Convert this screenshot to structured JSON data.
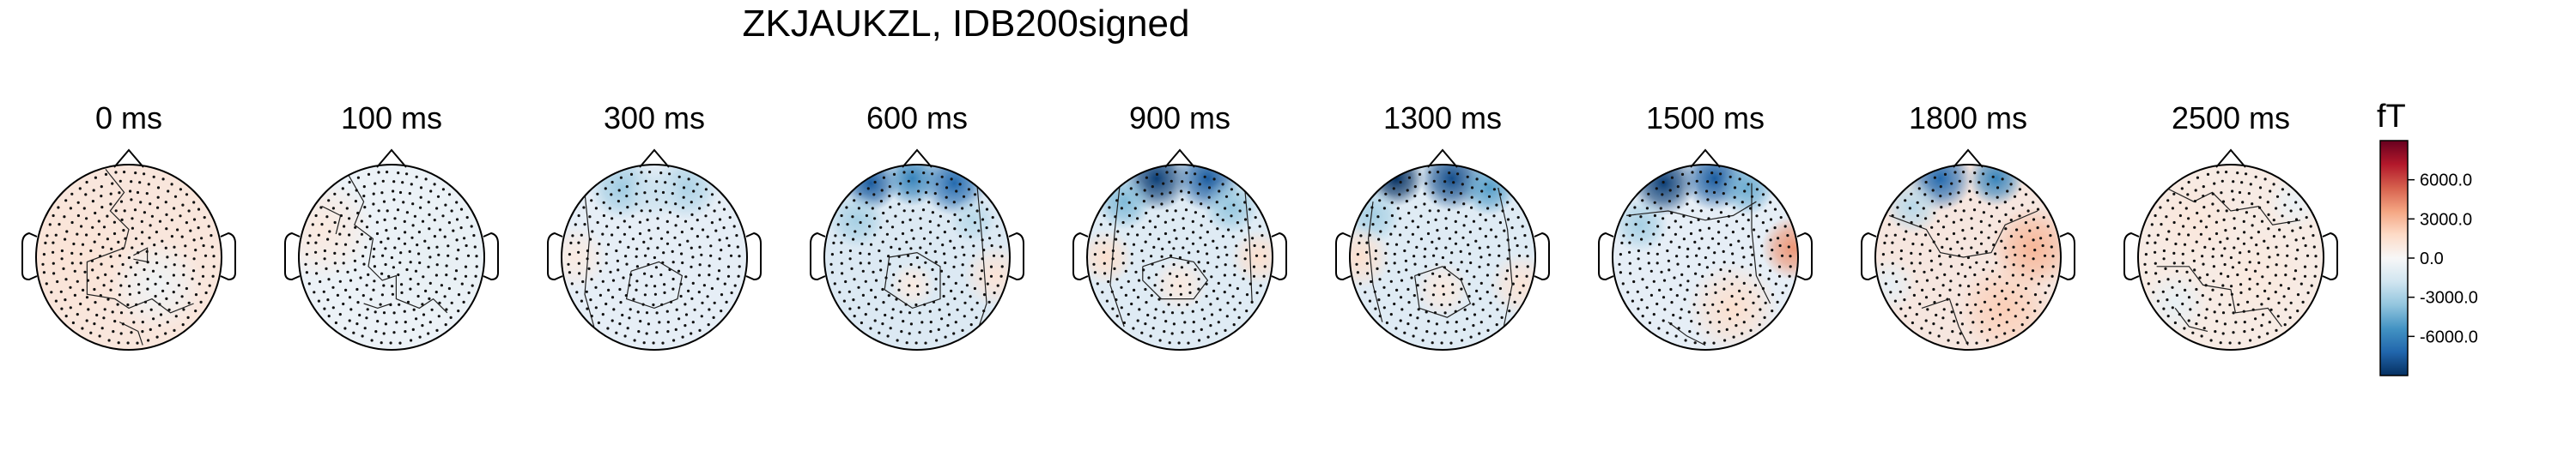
{
  "chart_data": {
    "type": "heatmap",
    "title": "ZKJAUKZL, IDB200signed",
    "colorbar": {
      "unit": "fT",
      "ticks": [
        6000.0,
        3000.0,
        0.0,
        -3000.0,
        -6000.0
      ],
      "tick_labels": [
        "6000.0",
        "3000.0",
        "0.0",
        "-3000.0",
        "-6000.0"
      ],
      "vmin": -9000,
      "vmax": 9000,
      "colormap": "RdBu_r",
      "colors": [
        "#053061",
        "#2166ac",
        "#4393c3",
        "#92c5de",
        "#d1e5f0",
        "#f7f7f7",
        "#fddbc7",
        "#f4a582",
        "#d6604d",
        "#b2182b",
        "#67001f"
      ]
    },
    "topomaps": [
      {
        "time_label": "0 ms",
        "time_ms": 0,
        "fill": "#f9e6dc",
        "blobs": [
          {
            "x": -0.6,
            "y": 0.0,
            "r": 0.7,
            "v": 1200
          },
          {
            "x": 0.3,
            "y": -0.3,
            "r": 0.5,
            "v": -400
          }
        ],
        "contours": [
          [
            [
              -0.25,
              0.95
            ],
            [
              -0.05,
              0.7
            ],
            [
              -0.2,
              0.5
            ],
            [
              0.0,
              0.3
            ],
            [
              -0.05,
              0.1
            ],
            [
              -0.45,
              -0.05
            ],
            [
              -0.45,
              -0.4
            ],
            [
              -0.15,
              -0.45
            ],
            [
              0.0,
              -0.55
            ],
            [
              0.25,
              -0.45
            ],
            [
              0.45,
              -0.6
            ],
            [
              0.7,
              -0.5
            ]
          ],
          [
            [
              0.05,
              0.02
            ],
            [
              0.2,
              0.1
            ],
            [
              0.2,
              -0.05
            ],
            [
              0.05,
              -0.02
            ]
          ],
          [
            [
              -0.1,
              -0.7
            ],
            [
              0.1,
              -0.8
            ],
            [
              0.15,
              -0.95
            ]
          ]
        ]
      },
      {
        "time_label": "100 ms",
        "time_ms": 100,
        "fill": "#ecf2f7",
        "blobs": [
          {
            "x": -0.75,
            "y": 0.3,
            "r": 0.55,
            "v": 900
          },
          {
            "x": 0.5,
            "y": 0.0,
            "r": 0.7,
            "v": -700
          }
        ],
        "contours": [
          [
            [
              -0.5,
              0.95
            ],
            [
              -0.3,
              0.6
            ],
            [
              -0.4,
              0.35
            ],
            [
              -0.2,
              0.2
            ],
            [
              -0.25,
              -0.1
            ],
            [
              -0.1,
              -0.25
            ],
            [
              0.05,
              -0.2
            ],
            [
              0.05,
              -0.45
            ],
            [
              0.3,
              -0.55
            ],
            [
              0.45,
              -0.45
            ],
            [
              0.6,
              -0.6
            ]
          ],
          [
            [
              -0.75,
              0.55
            ],
            [
              -0.55,
              0.45
            ],
            [
              -0.6,
              0.25
            ]
          ],
          [
            [
              -0.3,
              -0.5
            ],
            [
              -0.15,
              -0.55
            ],
            [
              0.0,
              -0.5
            ]
          ]
        ]
      },
      {
        "time_label": "300 ms",
        "time_ms": 300,
        "fill": "#e6eef6",
        "blobs": [
          {
            "x": -0.35,
            "y": 0.75,
            "r": 0.35,
            "v": -3200
          },
          {
            "x": 0.35,
            "y": 0.75,
            "r": 0.35,
            "v": -2800
          },
          {
            "x": 0.0,
            "y": 0.7,
            "r": 0.3,
            "v": -2000
          },
          {
            "x": -0.85,
            "y": 0.0,
            "r": 0.35,
            "v": 800
          }
        ],
        "contours": [
          [
            [
              -0.25,
              -0.15
            ],
            [
              0.05,
              -0.05
            ],
            [
              0.3,
              -0.2
            ],
            [
              0.25,
              -0.45
            ],
            [
              0.0,
              -0.55
            ],
            [
              -0.3,
              -0.45
            ],
            [
              -0.25,
              -0.15
            ]
          ],
          [
            [
              -0.75,
              0.7
            ],
            [
              -0.7,
              0.2
            ],
            [
              -0.75,
              -0.4
            ],
            [
              -0.65,
              -0.75
            ]
          ]
        ]
      },
      {
        "time_label": "600 ms",
        "time_ms": 600,
        "fill": "#dce9f3",
        "blobs": [
          {
            "x": -0.5,
            "y": 0.8,
            "r": 0.3,
            "v": -7500
          },
          {
            "x": 0.4,
            "y": 0.8,
            "r": 0.35,
            "v": -7000
          },
          {
            "x": -0.05,
            "y": 0.85,
            "r": 0.3,
            "v": -6000
          },
          {
            "x": -0.65,
            "y": 0.4,
            "r": 0.3,
            "v": -3000
          },
          {
            "x": 0.6,
            "y": 0.4,
            "r": 0.25,
            "v": -2500
          },
          {
            "x": 0.85,
            "y": -0.2,
            "r": 0.35,
            "v": 1200
          },
          {
            "x": -0.05,
            "y": -0.3,
            "r": 0.25,
            "v": 800
          }
        ],
        "contours": [
          [
            [
              -0.3,
              0.0
            ],
            [
              0.0,
              0.05
            ],
            [
              0.25,
              -0.1
            ],
            [
              0.25,
              -0.45
            ],
            [
              -0.05,
              -0.55
            ],
            [
              -0.35,
              -0.35
            ],
            [
              -0.3,
              0.0
            ]
          ],
          [
            [
              0.65,
              0.75
            ],
            [
              0.7,
              0.2
            ],
            [
              0.75,
              -0.5
            ],
            [
              0.65,
              -0.8
            ]
          ]
        ]
      },
      {
        "time_label": "900 ms",
        "time_ms": 900,
        "fill": "#dfebf4",
        "blobs": [
          {
            "x": -0.25,
            "y": 0.85,
            "r": 0.35,
            "v": -8500
          },
          {
            "x": 0.3,
            "y": 0.85,
            "r": 0.35,
            "v": -7500
          },
          {
            "x": -0.6,
            "y": 0.6,
            "r": 0.3,
            "v": -4000
          },
          {
            "x": 0.55,
            "y": 0.55,
            "r": 0.3,
            "v": -3500
          },
          {
            "x": -0.8,
            "y": 0.0,
            "r": 0.3,
            "v": 1500
          },
          {
            "x": 0.85,
            "y": 0.0,
            "r": 0.3,
            "v": 1500
          },
          {
            "x": 0.0,
            "y": -0.3,
            "r": 0.3,
            "v": 900
          }
        ],
        "contours": [
          [
            [
              -0.4,
              -0.1
            ],
            [
              -0.1,
              0.0
            ],
            [
              0.15,
              -0.05
            ],
            [
              0.3,
              -0.25
            ],
            [
              0.15,
              -0.45
            ],
            [
              -0.2,
              -0.45
            ],
            [
              -0.4,
              -0.25
            ],
            [
              -0.4,
              -0.1
            ]
          ],
          [
            [
              -0.65,
              0.75
            ],
            [
              -0.7,
              0.3
            ],
            [
              -0.75,
              -0.3
            ],
            [
              -0.6,
              -0.75
            ]
          ],
          [
            [
              0.7,
              0.75
            ],
            [
              0.75,
              0.2
            ],
            [
              0.78,
              -0.5
            ]
          ]
        ]
      },
      {
        "time_label": "1300 ms",
        "time_ms": 1300,
        "fill": "#dfebf4",
        "blobs": [
          {
            "x": -0.5,
            "y": 0.85,
            "r": 0.3,
            "v": -9000
          },
          {
            "x": 0.1,
            "y": 0.85,
            "r": 0.35,
            "v": -8000
          },
          {
            "x": 0.5,
            "y": 0.75,
            "r": 0.3,
            "v": -5000
          },
          {
            "x": -0.75,
            "y": 0.45,
            "r": 0.3,
            "v": -3000
          },
          {
            "x": -0.9,
            "y": 0.0,
            "r": 0.35,
            "v": 1500
          },
          {
            "x": 0.85,
            "y": -0.3,
            "r": 0.35,
            "v": 1200
          },
          {
            "x": 0.0,
            "y": -0.35,
            "r": 0.3,
            "v": 900
          }
        ],
        "contours": [
          [
            [
              -0.3,
              -0.2
            ],
            [
              0.0,
              -0.1
            ],
            [
              0.2,
              -0.25
            ],
            [
              0.3,
              -0.5
            ],
            [
              0.05,
              -0.65
            ],
            [
              -0.25,
              -0.55
            ],
            [
              -0.3,
              -0.2
            ]
          ],
          [
            [
              -0.75,
              0.6
            ],
            [
              -0.8,
              0.2
            ],
            [
              -0.75,
              -0.3
            ],
            [
              -0.65,
              -0.7
            ]
          ],
          [
            [
              0.6,
              0.75
            ],
            [
              0.7,
              0.3
            ],
            [
              0.75,
              -0.3
            ],
            [
              0.65,
              -0.8
            ]
          ]
        ]
      },
      {
        "time_label": "1500 ms",
        "time_ms": 1500,
        "fill": "#e6eef6",
        "blobs": [
          {
            "x": -0.45,
            "y": 0.8,
            "r": 0.35,
            "v": -8500
          },
          {
            "x": 0.1,
            "y": 0.85,
            "r": 0.35,
            "v": -7500
          },
          {
            "x": 0.45,
            "y": 0.75,
            "r": 0.3,
            "v": -4500
          },
          {
            "x": -0.7,
            "y": 0.35,
            "r": 0.3,
            "v": -3000
          },
          {
            "x": 0.95,
            "y": 0.1,
            "r": 0.35,
            "v": 4000
          },
          {
            "x": 0.3,
            "y": -0.55,
            "r": 0.5,
            "v": 1500
          }
        ],
        "contours": [
          [
            [
              -0.85,
              0.45
            ],
            [
              -0.4,
              0.5
            ],
            [
              0.0,
              0.4
            ],
            [
              0.3,
              0.45
            ],
            [
              0.55,
              0.6
            ]
          ],
          [
            [
              0.5,
              0.8
            ],
            [
              0.5,
              0.3
            ],
            [
              0.55,
              -0.2
            ],
            [
              0.7,
              -0.5
            ]
          ],
          [
            [
              -0.4,
              -0.7
            ],
            [
              -0.2,
              -0.85
            ],
            [
              0.0,
              -0.95
            ]
          ]
        ]
      },
      {
        "time_label": "1800 ms",
        "time_ms": 1800,
        "fill": "#f6e6df",
        "blobs": [
          {
            "x": -0.3,
            "y": 0.85,
            "r": 0.35,
            "v": -7000
          },
          {
            "x": 0.3,
            "y": 0.85,
            "r": 0.3,
            "v": -6000
          },
          {
            "x": -0.6,
            "y": 0.55,
            "r": 0.3,
            "v": -2500
          },
          {
            "x": 0.7,
            "y": 0.1,
            "r": 0.45,
            "v": 3000
          },
          {
            "x": 0.4,
            "y": -0.55,
            "r": 0.5,
            "v": 2200
          },
          {
            "x": -0.85,
            "y": -0.3,
            "r": 0.3,
            "v": -800
          }
        ],
        "contours": [
          [
            [
              -0.85,
              0.45
            ],
            [
              -0.45,
              0.3
            ],
            [
              -0.3,
              0.05
            ],
            [
              -0.05,
              0.0
            ],
            [
              0.25,
              0.05
            ],
            [
              0.4,
              0.35
            ],
            [
              0.75,
              0.5
            ]
          ],
          [
            [
              -0.5,
              -0.55
            ],
            [
              -0.2,
              -0.45
            ],
            [
              -0.1,
              -0.75
            ],
            [
              0.0,
              -0.95
            ]
          ]
        ]
      },
      {
        "time_label": "2500 ms",
        "time_ms": 2500,
        "fill": "#f7ebe4",
        "blobs": [
          {
            "x": -0.4,
            "y": 0.4,
            "r": 0.5,
            "v": 1000
          },
          {
            "x": 0.3,
            "y": -0.2,
            "r": 0.5,
            "v": 900
          },
          {
            "x": -0.6,
            "y": -0.5,
            "r": 0.35,
            "v": -700
          },
          {
            "x": 0.7,
            "y": 0.6,
            "r": 0.3,
            "v": -600
          }
        ],
        "contours": [
          [
            [
              -0.7,
              0.75
            ],
            [
              -0.4,
              0.6
            ],
            [
              -0.2,
              0.7
            ],
            [
              0.0,
              0.5
            ],
            [
              0.3,
              0.55
            ],
            [
              0.45,
              0.35
            ],
            [
              0.75,
              0.4
            ]
          ],
          [
            [
              -0.8,
              -0.1
            ],
            [
              -0.45,
              -0.1
            ],
            [
              -0.3,
              -0.3
            ],
            [
              0.0,
              -0.35
            ],
            [
              0.05,
              -0.6
            ],
            [
              0.4,
              -0.55
            ],
            [
              0.55,
              -0.75
            ]
          ],
          [
            [
              -0.6,
              -0.55
            ],
            [
              -0.45,
              -0.75
            ],
            [
              -0.25,
              -0.8
            ]
          ]
        ]
      }
    ]
  }
}
